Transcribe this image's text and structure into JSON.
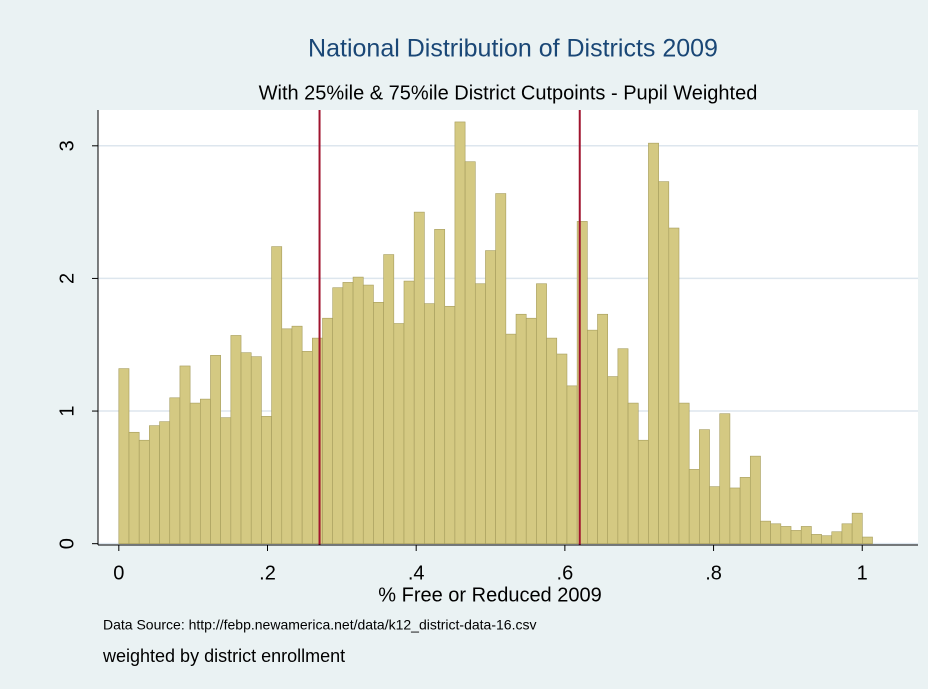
{
  "chart_data": {
    "type": "histogram",
    "title": "National Distribution of Districts 2009",
    "subtitle": "With 25%ile & 75%ile District Cutpoints - Pupil Weighted",
    "x_label": "% Free or Reduced 2009",
    "notes": [
      "Data Source: http://febp.newamerica.net/data/k12_district-data-16.csv",
      "weighted by district enrollment"
    ],
    "color": "#d4c982",
    "edge_color": "#a59c5c",
    "bins": [
      0,
      0.0137,
      0.0274,
      0.0411,
      0.0548,
      0.0685,
      0.0822,
      0.0959,
      0.1096,
      0.1233,
      0.137,
      0.1507,
      0.1644,
      0.1781,
      0.1918,
      0.2055,
      0.2192,
      0.2329,
      0.2466,
      0.2603,
      0.274,
      0.2877,
      0.3014,
      0.3151,
      0.3288,
      0.3425,
      0.3562,
      0.3699,
      0.3836,
      0.3973,
      0.411,
      0.4247,
      0.4384,
      0.4521,
      0.4658,
      0.4795,
      0.4932,
      0.5069,
      0.5206,
      0.5343,
      0.548,
      0.5617,
      0.5754,
      0.5891,
      0.6028,
      0.6165,
      0.6302,
      0.6439,
      0.6576,
      0.6713,
      0.685,
      0.6987,
      0.7124,
      0.7261,
      0.7398,
      0.7535,
      0.7672,
      0.7809,
      0.7946,
      0.8083,
      0.822,
      0.8357,
      0.8494,
      0.8631,
      0.8768,
      0.8905,
      0.9042,
      0.9179,
      0.9316,
      0.9453,
      0.959,
      0.9727,
      0.9864,
      1.0001,
      1.0138
    ],
    "values": [
      1.32,
      0.84,
      0.78,
      0.89,
      0.92,
      1.1,
      1.34,
      1.06,
      1.09,
      1.42,
      0.95,
      1.57,
      1.44,
      1.41,
      0.96,
      2.24,
      1.62,
      1.64,
      1.45,
      1.55,
      1.7,
      1.93,
      1.97,
      2.01,
      1.95,
      1.82,
      2.18,
      1.66,
      1.98,
      2.5,
      1.81,
      2.37,
      1.79,
      3.18,
      2.88,
      1.96,
      2.21,
      2.64,
      1.58,
      1.73,
      1.7,
      1.96,
      1.55,
      1.43,
      1.19,
      2.43,
      1.61,
      1.73,
      1.26,
      1.47,
      1.06,
      0.78,
      3.02,
      2.73,
      2.38,
      1.06,
      0.56,
      0.86,
      0.43,
      0.98,
      0.42,
      0.5,
      0.66,
      0.17,
      0.15,
      0.13,
      0.1,
      0.13,
      0.07,
      0.06,
      0.09,
      0.15,
      0.23,
      0.05
    ],
    "cutpoints": [
      0.27,
      0.62
    ],
    "cutpoint_color": "#a0142e",
    "xlim": [
      -0.028,
      1.075
    ],
    "ylim": [
      -0.01,
      3.27
    ],
    "xticks": [
      0,
      {
        "value": 0.2,
        "label": ".2"
      },
      {
        "value": 0.4,
        "label": ".4"
      },
      {
        "value": 0.6,
        "label": ".6"
      },
      {
        "value": 0.8,
        "label": ".8"
      },
      1
    ],
    "yticks": [
      0,
      1,
      2,
      3
    ],
    "grid": true
  }
}
